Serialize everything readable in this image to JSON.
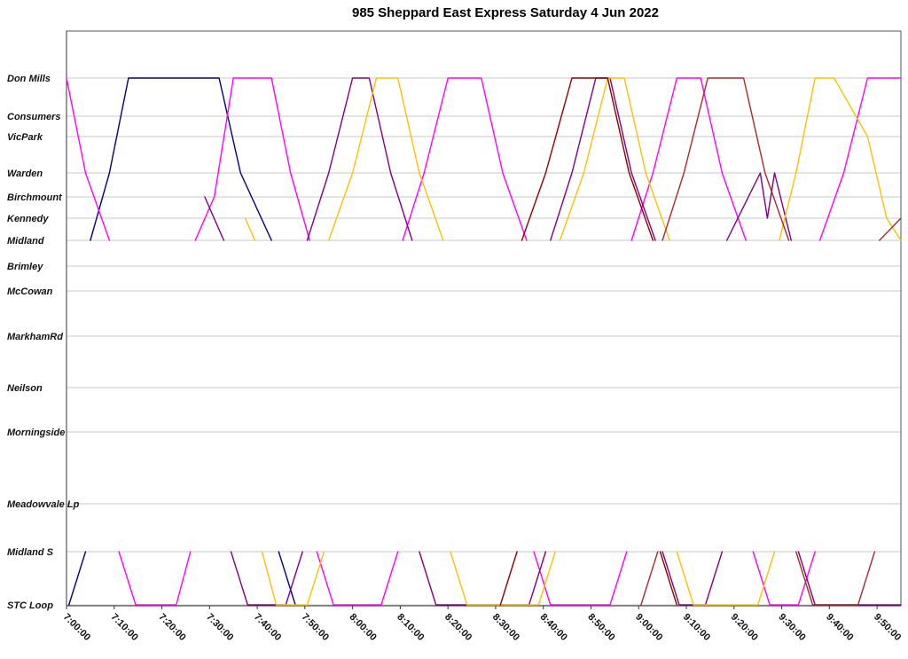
{
  "chart_data": {
    "type": "line",
    "title": "985 Sheppard East Express Saturday 4 Jun 2022",
    "xlabel": "",
    "ylabel": "",
    "legend": "none",
    "grid": "horizontal-only",
    "time": {
      "min": 420,
      "max": 595
    },
    "x_axis_ticks": [
      {
        "t": 420,
        "label": "7:00:00"
      },
      {
        "t": 430,
        "label": "7:10:00"
      },
      {
        "t": 440,
        "label": "7:20:00"
      },
      {
        "t": 450,
        "label": "7:30:00"
      },
      {
        "t": 460,
        "label": "7:40:00"
      },
      {
        "t": 470,
        "label": "7:50:00"
      },
      {
        "t": 480,
        "label": "8:00:00"
      },
      {
        "t": 490,
        "label": "8:10:00"
      },
      {
        "t": 500,
        "label": "8:20:00"
      },
      {
        "t": 510,
        "label": "8:30:00"
      },
      {
        "t": 520,
        "label": "8:40:00"
      },
      {
        "t": 530,
        "label": "8:50:00"
      },
      {
        "t": 540,
        "label": "9:00:00"
      },
      {
        "t": 550,
        "label": "9:10:00"
      },
      {
        "t": 560,
        "label": "9:20:00"
      },
      {
        "t": 570,
        "label": "9:30:00"
      },
      {
        "t": 580,
        "label": "9:40:00"
      },
      {
        "t": 590,
        "label": "9:50:00"
      }
    ],
    "stations": [
      {
        "label": "Don Mills",
        "dist": 53
      },
      {
        "label": "Consumers",
        "dist": 96
      },
      {
        "label": "VicPark",
        "dist": 119
      },
      {
        "label": "Warden",
        "dist": 160
      },
      {
        "label": "Birchmount",
        "dist": 187
      },
      {
        "label": "Kennedy",
        "dist": 211
      },
      {
        "label": "Midland",
        "dist": 236
      },
      {
        "label": "Brimley",
        "dist": 265
      },
      {
        "label": "McCowan",
        "dist": 293
      },
      {
        "label": "MarkhamRd",
        "dist": 344
      },
      {
        "label": "Neilson",
        "dist": 402
      },
      {
        "label": "Morningside",
        "dist": 452
      },
      {
        "label": "Meadowvale Lp",
        "dist": 533
      },
      {
        "label": "Midland S",
        "dist": 587
      },
      {
        "label": "STC Loop",
        "dist": 647
      }
    ],
    "trips": [
      {
        "vehicle": "run-navy",
        "color": "#000080",
        "segments": [
          [
            [
              420.5,
              "STC Loop"
            ],
            [
              424,
              "Midland S"
            ]
          ],
          [
            [
              425,
              "Midland"
            ],
            [
              429,
              "Warden"
            ],
            [
              433,
              "Don Mills"
            ],
            [
              452,
              "Don Mills"
            ],
            [
              456.5,
              "Warden"
            ],
            [
              463,
              "Midland"
            ]
          ],
          [
            [
              464.5,
              "Midland S"
            ],
            [
              468,
              "STC Loop"
            ]
          ]
        ]
      },
      {
        "vehicle": "run-magenta",
        "color": "#FF00FF",
        "segments": [
          [
            [
              420,
              "Don Mills"
            ],
            [
              424,
              "Warden"
            ],
            [
              429,
              "Midland"
            ]
          ],
          [
            [
              431,
              "Midland S"
            ],
            [
              434.5,
              "STC Loop"
            ],
            [
              443,
              "STC Loop"
            ],
            [
              446,
              "Midland S"
            ]
          ],
          [
            [
              447,
              "Midland"
            ],
            [
              451,
              "Birchmount"
            ],
            [
              455,
              "Don Mills"
            ],
            [
              463,
              "Don Mills"
            ],
            [
              467,
              "Warden"
            ],
            [
              471,
              "Midland"
            ]
          ],
          [
            [
              472.5,
              "Midland S"
            ],
            [
              476,
              "STC Loop"
            ],
            [
              486,
              "STC Loop"
            ],
            [
              489.5,
              "Midland S"
            ]
          ],
          [
            [
              490.5,
              "Midland"
            ],
            [
              495,
              "Warden"
            ],
            [
              500,
              "Don Mills"
            ],
            [
              507,
              "Don Mills"
            ],
            [
              511.5,
              "Warden"
            ],
            [
              516.5,
              "Midland"
            ]
          ],
          [
            [
              518,
              "Midland S"
            ],
            [
              521.5,
              "STC Loop"
            ],
            [
              534,
              "STC Loop"
            ],
            [
              537.5,
              "Midland S"
            ]
          ],
          [
            [
              538.5,
              "Midland"
            ],
            [
              543,
              "Warden"
            ],
            [
              548,
              "Don Mills"
            ],
            [
              553,
              "Don Mills"
            ],
            [
              557.5,
              "Warden"
            ],
            [
              562.5,
              "Midland"
            ]
          ],
          [
            [
              564,
              "Midland S"
            ],
            [
              567.5,
              "STC Loop"
            ],
            [
              573.5,
              "STC Loop"
            ],
            [
              577,
              "Midland S"
            ]
          ],
          [
            [
              578,
              "Midland"
            ],
            [
              583,
              "Warden"
            ],
            [
              588,
              "Don Mills"
            ],
            [
              595,
              "Don Mills"
            ]
          ]
        ]
      },
      {
        "vehicle": "run-purple",
        "color": "#800080",
        "segments": [
          [
            [
              449,
              "Birchmount"
            ],
            [
              453,
              "Midland"
            ]
          ],
          [
            [
              454.5,
              "Midland S"
            ],
            [
              458,
              "STC Loop"
            ],
            [
              466,
              "STC Loop"
            ],
            [
              469.5,
              "Midland S"
            ]
          ],
          [
            [
              470.5,
              "Midland"
            ],
            [
              475,
              "Warden"
            ],
            [
              480,
              "Don Mills"
            ],
            [
              483.5,
              "Don Mills"
            ],
            [
              488,
              "Warden"
            ],
            [
              492.5,
              "Midland"
            ]
          ],
          [
            [
              494,
              "Midland S"
            ],
            [
              497.5,
              "STC Loop"
            ],
            [
              517,
              "STC Loop"
            ],
            [
              520.5,
              "Midland S"
            ]
          ],
          [
            [
              521.5,
              "Midland"
            ],
            [
              526,
              "Warden"
            ],
            [
              531,
              "Don Mills"
            ],
            [
              534,
              "Don Mills"
            ],
            [
              538.5,
              "Warden"
            ],
            [
              543.5,
              "Midland"
            ]
          ],
          [
            [
              545,
              "Midland S"
            ],
            [
              548.5,
              "STC Loop"
            ],
            [
              554,
              "STC Loop"
            ],
            [
              557.5,
              "Midland S"
            ]
          ],
          [
            [
              558.5,
              "Midland"
            ],
            [
              565.5,
              "Warden"
            ],
            [
              567,
              "Kennedy"
            ],
            [
              568.5,
              "Warden"
            ],
            [
              572,
              "Midland"
            ]
          ],
          [
            [
              573.5,
              "Midland S"
            ],
            [
              577,
              "STC Loop"
            ],
            [
              595,
              "STC Loop"
            ]
          ]
        ]
      },
      {
        "vehicle": "run-gold",
        "color": "#FFC000",
        "segments": [
          [
            [
              457.5,
              "Kennedy"
            ],
            [
              459.5,
              "Midland"
            ]
          ],
          [
            [
              461,
              "Midland S"
            ],
            [
              464,
              "STC Loop"
            ],
            [
              470.5,
              "STC Loop"
            ],
            [
              474,
              "Midland S"
            ]
          ],
          [
            [
              475,
              "Midland"
            ],
            [
              480,
              "Warden"
            ],
            [
              485,
              "Don Mills"
            ],
            [
              489.5,
              "Don Mills"
            ],
            [
              494,
              "Warden"
            ],
            [
              499,
              "Midland"
            ]
          ],
          [
            [
              500.5,
              "Midland S"
            ],
            [
              504,
              "STC Loop"
            ],
            [
              519,
              "STC Loop"
            ],
            [
              522.5,
              "Midland S"
            ]
          ],
          [
            [
              523.5,
              "Midland"
            ],
            [
              528.5,
              "Warden"
            ],
            [
              533.5,
              "Don Mills"
            ],
            [
              537,
              "Don Mills"
            ],
            [
              541.5,
              "Warden"
            ],
            [
              546.5,
              "Midland"
            ]
          ],
          [
            [
              548,
              "Midland S"
            ],
            [
              551.5,
              "STC Loop"
            ],
            [
              565,
              "STC Loop"
            ],
            [
              568.5,
              "Midland S"
            ]
          ],
          [
            [
              569.5,
              "Midland"
            ],
            [
              573,
              "Warden"
            ],
            [
              577,
              "Don Mills"
            ],
            [
              581,
              "Don Mills"
            ],
            [
              588,
              "VicPark"
            ],
            [
              592,
              "Kennedy"
            ],
            [
              595,
              "Midland"
            ]
          ]
        ]
      },
      {
        "vehicle": "run-maroon",
        "color": "#8B0000",
        "segments": [
          [
            [
              511,
              "STC Loop"
            ],
            [
              514.5,
              "Midland S"
            ]
          ],
          [
            [
              515.5,
              "Midland"
            ],
            [
              520.5,
              "Warden"
            ],
            [
              526,
              "Don Mills"
            ],
            [
              533.5,
              "Don Mills"
            ],
            [
              538,
              "Warden"
            ],
            [
              543,
              "Midland"
            ]
          ],
          [
            [
              544.5,
              "Midland S"
            ],
            [
              548,
              "STC Loop"
            ]
          ]
        ]
      },
      {
        "vehicle": "run-brown",
        "color": "#A52A2A",
        "segments": [
          [
            [
              540.5,
              "STC Loop"
            ],
            [
              544,
              "Midland S"
            ]
          ],
          [
            [
              545,
              "Midland"
            ],
            [
              549.5,
              "Warden"
            ],
            [
              554.5,
              "Don Mills"
            ],
            [
              562,
              "Don Mills"
            ],
            [
              566.5,
              "Warden"
            ],
            [
              571.5,
              "Midland"
            ]
          ],
          [
            [
              573,
              "Midland S"
            ],
            [
              576.5,
              "STC Loop"
            ],
            [
              586,
              "STC Loop"
            ],
            [
              589.5,
              "Midland S"
            ]
          ],
          [
            [
              590.5,
              "Midland"
            ],
            [
              595,
              "Kennedy"
            ]
          ]
        ]
      }
    ]
  }
}
